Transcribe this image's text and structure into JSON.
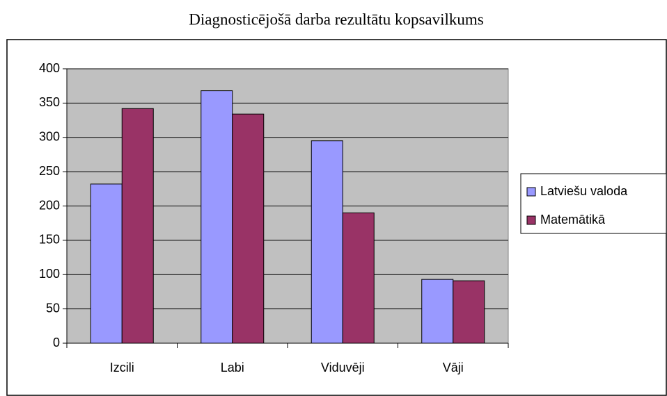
{
  "chart_data": {
    "type": "bar",
    "title": "Diagnosticējošā darba rezultātu kopsavilkums",
    "categories": [
      "Izcili",
      "Labi",
      "Viduvēji",
      "Vāji"
    ],
    "series": [
      {
        "name": "Latviešu valoda",
        "color": "#9999ff",
        "values": [
          232,
          368,
          295,
          93
        ]
      },
      {
        "name": "Matemātikā",
        "color": "#993366",
        "values": [
          342,
          334,
          190,
          91
        ]
      }
    ],
    "ylim": [
      0,
      400
    ],
    "yticks": [
      0,
      50,
      100,
      150,
      200,
      250,
      300,
      350,
      400
    ],
    "grid": true,
    "plot_background": "#c0c0c0",
    "legend": "right"
  }
}
